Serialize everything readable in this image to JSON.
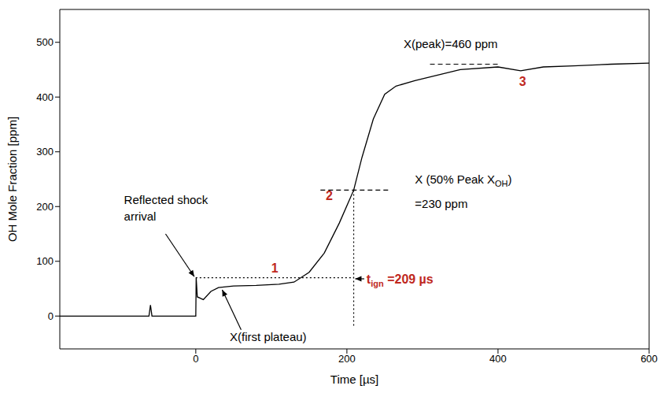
{
  "chart_data": {
    "type": "line",
    "x_label": "Time [µs]",
    "y_label": "OH Mole Fraction [ppm]",
    "xlim": [
      -180,
      600
    ],
    "xticks": [
      0,
      200,
      400,
      600
    ],
    "ylim": [
      -60,
      560
    ],
    "yticks": [
      0,
      100,
      200,
      300,
      400,
      500
    ],
    "grid": false,
    "series": [
      {
        "name": "OH",
        "color": "#000000",
        "x": [
          -180,
          -100,
          -62,
          -60,
          -58,
          0,
          0.5,
          2,
          10,
          20,
          30,
          50,
          80,
          110,
          130,
          150,
          170,
          190,
          209,
          220,
          235,
          250,
          265,
          290,
          320,
          350,
          400,
          430,
          460,
          500,
          550,
          600
        ],
        "values": [
          0,
          0,
          0,
          20,
          0,
          0,
          70,
          35,
          30,
          45,
          52,
          55,
          56,
          58,
          62,
          80,
          115,
          170,
          230,
          290,
          360,
          405,
          420,
          430,
          440,
          450,
          455,
          448,
          455,
          457,
          460,
          462
        ]
      }
    ],
    "annotations": [
      {
        "text": "X(peak)=460 ppm",
        "x": 275,
        "y": 490,
        "color": "#000000"
      },
      {
        "text": "X (50% Peak XOH)",
        "subscript": "OH",
        "x": 290,
        "y": 242,
        "color": "#000000"
      },
      {
        "text": "=230 ppm",
        "x": 290,
        "y": 198,
        "color": "#000000"
      },
      {
        "text": "Reflected shock",
        "x": -95,
        "y": 205,
        "color": "#000000"
      },
      {
        "text": "arrival",
        "x": -95,
        "y": 175,
        "color": "#000000"
      },
      {
        "text": "X(first plateau)",
        "x": 45,
        "y": -45,
        "color": "#000000"
      },
      {
        "text": "1",
        "x": 100,
        "y": 80,
        "color": "#c0281e"
      },
      {
        "text": "2",
        "x": 172,
        "y": 212,
        "color": "#c0281e"
      },
      {
        "text": "3",
        "x": 428,
        "y": 420,
        "color": "#c0281e"
      },
      {
        "text": "tign =209 µs",
        "subscript": "ign",
        "x": 226,
        "y": 60,
        "color": "#c0281e"
      }
    ],
    "lines": [
      {
        "x": [
          310,
          400
        ],
        "y": [
          460,
          460
        ],
        "color": "#000000",
        "line_style": "dashed"
      },
      {
        "x": [
          165,
          255
        ],
        "y": [
          230,
          230
        ],
        "color": "#000000",
        "line_style": "dashed"
      },
      {
        "x": [
          0,
          209
        ],
        "y": [
          70,
          70
        ],
        "color": "#000000",
        "line_style": "dotted"
      },
      {
        "x": [
          209,
          209
        ],
        "y": [
          230,
          -20
        ],
        "color": "#000000",
        "line_style": "dotted"
      },
      {
        "x": [
          -40,
          -2
        ],
        "y": [
          150,
          72
        ],
        "color": "#000000",
        "line_style": "solid",
        "marker": "arrow"
      },
      {
        "x": [
          60,
          35
        ],
        "y": [
          -25,
          48
        ],
        "color": "#000000",
        "line_style": "solid",
        "marker": "arrow"
      },
      {
        "x": [
          223,
          211
        ],
        "y": [
          68,
          68
        ],
        "color": "#000000",
        "line_style": "solid",
        "marker": "arrow"
      }
    ]
  }
}
